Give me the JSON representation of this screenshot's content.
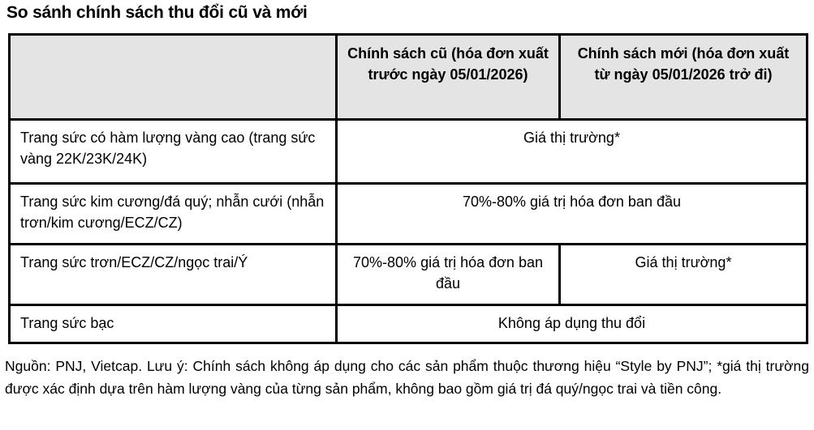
{
  "title": "So sánh chính sách thu đổi cũ và mới",
  "colors": {
    "header_background": "#e4e4e4",
    "border": "#000000",
    "text": "#000000"
  },
  "table": {
    "col_headers": {
      "label": "",
      "old": "Chính sách cũ (hóa đơn xuất trước ngày 05/01/2026)",
      "new": "Chính sách mới (hóa đơn xuất từ ngày 05/01/2026 trở đi)"
    },
    "rows": [
      {
        "label": "Trang sức có hàm lượng vàng cao (trang sức vàng 22K/23K/24K)",
        "value": "Giá thị trường*",
        "span": "both"
      },
      {
        "label": "Trang sức kim cương/đá quý; nhẫn cưới (nhẫn trơn/kim cương/ECZ/CZ)",
        "value": "70%-80% giá trị hóa đơn ban đầu",
        "span": "both"
      },
      {
        "label": "Trang sức trơn/ECZ/CZ/ngọc trai/Ý",
        "old_value": "70%-80% giá trị hóa đơn ban đầu",
        "new_value": "Giá thị trường*",
        "span": "split"
      },
      {
        "label": "Trang sức bạc",
        "value": "Không áp dụng thu đổi",
        "span": "both"
      }
    ]
  },
  "footnote": "Nguồn: PNJ, Vietcap. Lưu ý: Chính sách không áp dụng cho các sản phẩm thuộc thương hiệu “Style by PNJ”; *giá thị trường được xác định dựa trên hàm lượng vàng của từng sản phẩm, không bao gồm giá trị đá quý/ngọc trai và tiền công."
}
